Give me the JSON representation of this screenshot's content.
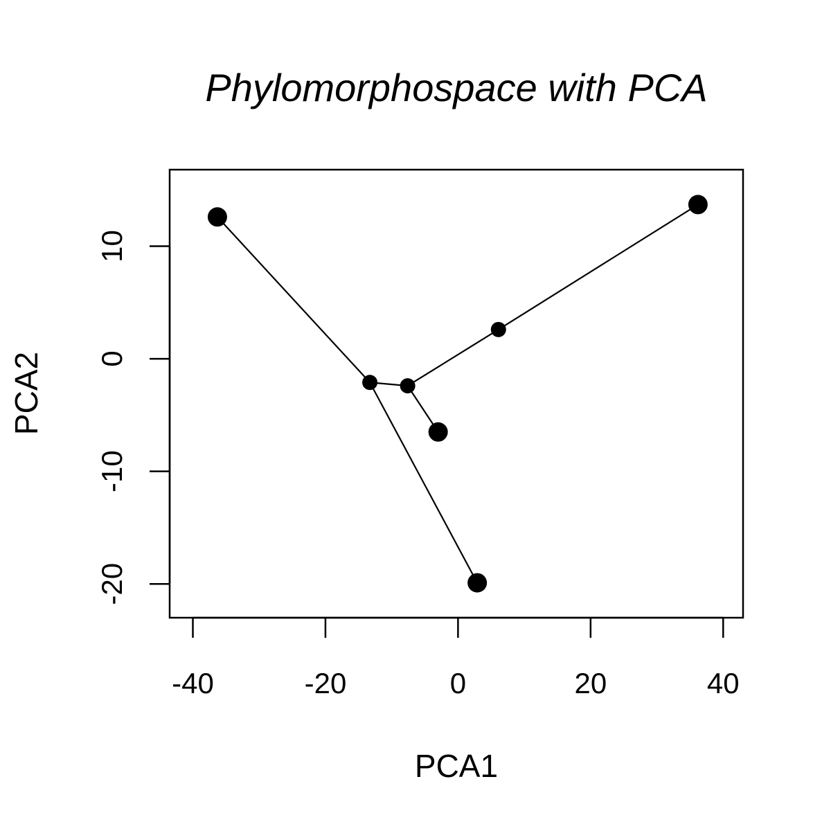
{
  "chart_data": {
    "type": "scatter",
    "title": "Phylomorphospace with PCA",
    "xlabel": "PCA1",
    "ylabel": "PCA2",
    "xlim": [
      -43.5,
      43
    ],
    "ylim": [
      -23,
      16.8
    ],
    "xticks": [
      -40,
      -20,
      0,
      20,
      40
    ],
    "xtick_labels": [
      "-40",
      "-20",
      "0",
      "20",
      "40"
    ],
    "yticks": [
      -20,
      -10,
      0,
      10
    ],
    "ytick_labels": [
      "-20",
      "-10",
      "0",
      "10"
    ],
    "grid": false,
    "legend": "none",
    "colors": {
      "points": "#000000",
      "lines": "#000000",
      "frame": "#000000"
    },
    "tips": [
      {
        "x": -36.3,
        "y": 12.6
      },
      {
        "x": 36.2,
        "y": 13.7
      },
      {
        "x": -3.0,
        "y": -6.5
      },
      {
        "x": 2.9,
        "y": -19.9
      }
    ],
    "nodes": [
      {
        "x": -13.3,
        "y": -2.1
      },
      {
        "x": -7.6,
        "y": -2.4
      },
      {
        "x": 6.1,
        "y": 2.6
      }
    ],
    "edges": [
      {
        "from": [
          -13.3,
          -2.1
        ],
        "to": [
          -36.3,
          12.6
        ]
      },
      {
        "from": [
          -13.3,
          -2.1
        ],
        "to": [
          2.9,
          -19.9
        ]
      },
      {
        "from": [
          -13.3,
          -2.1
        ],
        "to": [
          -7.6,
          -2.4
        ]
      },
      {
        "from": [
          -7.6,
          -2.4
        ],
        "to": [
          -3.0,
          -6.5
        ]
      },
      {
        "from": [
          -7.6,
          -2.4
        ],
        "to": [
          6.1,
          2.6
        ]
      },
      {
        "from": [
          6.1,
          2.6
        ],
        "to": [
          36.2,
          13.7
        ]
      }
    ]
  }
}
